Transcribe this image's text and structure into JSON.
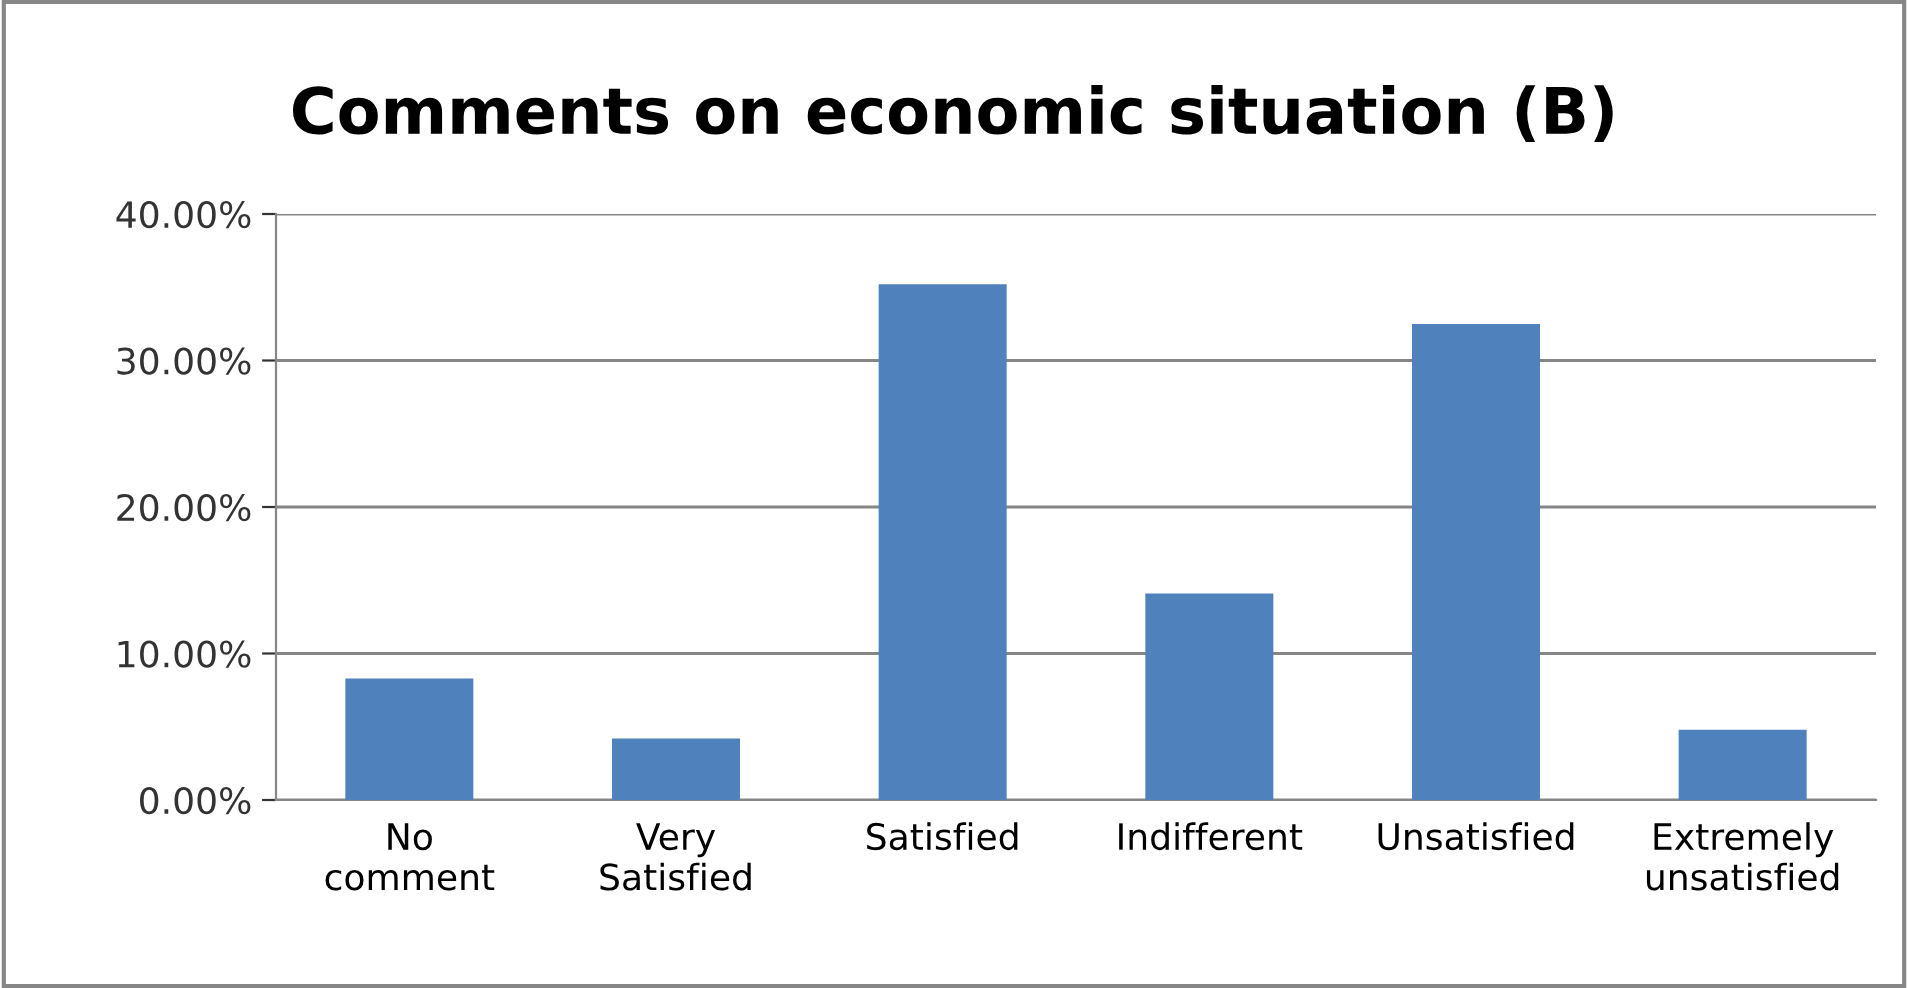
{
  "chart_data": {
    "type": "bar",
    "title": "Comments on economic situation (B)",
    "categories": [
      "No\ncomment",
      "Very\nSatisfied",
      "Satisfied",
      "Indifferent",
      "Unsatisfied",
      "Extremely\nunsatisfied"
    ],
    "values": [
      8.3,
      4.2,
      35.2,
      14.1,
      32.5,
      4.8
    ],
    "color": "#4f81bd",
    "ylim": [
      0,
      40
    ],
    "yticks": [
      {
        "value": 0,
        "label": "0.00%"
      },
      {
        "value": 10,
        "label": "10.00%"
      },
      {
        "value": 20,
        "label": "20.00%"
      },
      {
        "value": 30,
        "label": "30.00%"
      },
      {
        "value": 40,
        "label": "40.00%"
      }
    ],
    "grid": "y",
    "legend": false
  }
}
